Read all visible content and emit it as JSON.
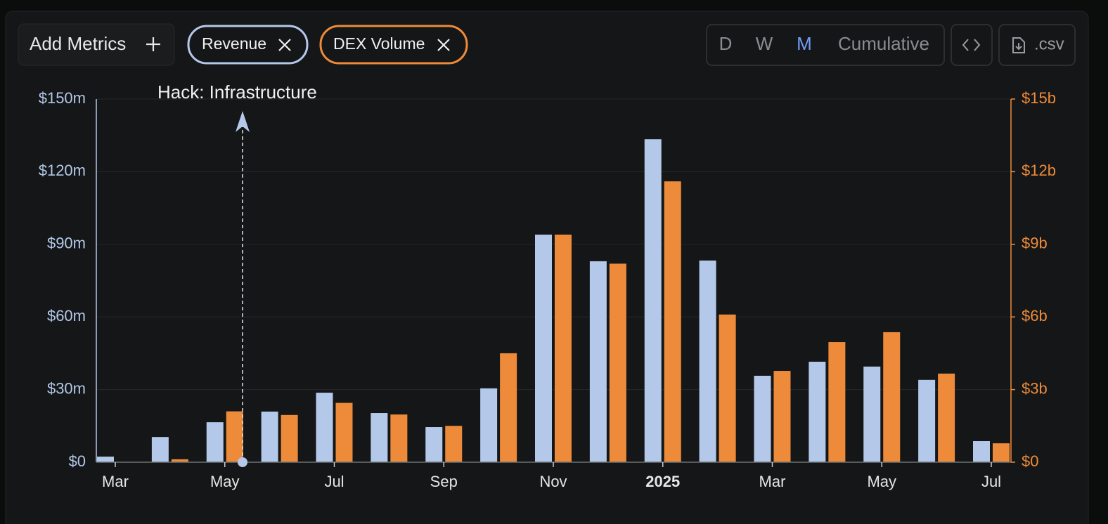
{
  "controls": {
    "add_metrics": "Add Metrics",
    "periods": [
      "D",
      "W",
      "M",
      "Cumulative"
    ],
    "active_period": "M",
    "csv": ".csv"
  },
  "chart_data": {
    "type": "bar",
    "categories": [
      "Mar",
      null,
      "May",
      null,
      "Jul",
      null,
      "Sep",
      null,
      "Nov",
      null,
      "2025",
      null,
      "Mar",
      null,
      "May",
      null,
      "Jul"
    ],
    "series": [
      {
        "name": "Revenue",
        "color": "#b4c8e9",
        "values": [
          2.3,
          10.4,
          16.5,
          20.9,
          28.7,
          20.3,
          14.5,
          30.5,
          94,
          83,
          133.4,
          83.3,
          35.7,
          41.5,
          39.5,
          34,
          8.7
        ]
      },
      {
        "name": "DEX Volume",
        "color": "#ee8b3a",
        "axis": "y2",
        "values": [
          null,
          0.12,
          2.1,
          1.95,
          2.45,
          1.97,
          1.5,
          4.5,
          9.4,
          8.2,
          11.6,
          6.1,
          3.77,
          4.96,
          5.37,
          3.66,
          0.78
        ]
      }
    ],
    "ylim": [
      0,
      150
    ],
    "yticks": [
      {
        "value": 0,
        "label": "$0"
      },
      {
        "value": 30,
        "label": "$30m"
      },
      {
        "value": 60,
        "label": "$60m"
      },
      {
        "value": 90,
        "label": "$90m"
      },
      {
        "value": 120,
        "label": "$120m"
      },
      {
        "value": 150,
        "label": "$150m"
      }
    ],
    "y2lim": [
      0,
      15
    ],
    "y2ticks": [
      {
        "value": 0,
        "label": "$0"
      },
      {
        "value": 3,
        "label": "$3b"
      },
      {
        "value": 6,
        "label": "$6b"
      },
      {
        "value": 9,
        "label": "$9b"
      },
      {
        "value": 12,
        "label": "$12b"
      },
      {
        "value": 15,
        "label": "$15b"
      }
    ],
    "grid": true,
    "annotations": [
      {
        "label": "Hack: Infrastructure"
      }
    ]
  }
}
